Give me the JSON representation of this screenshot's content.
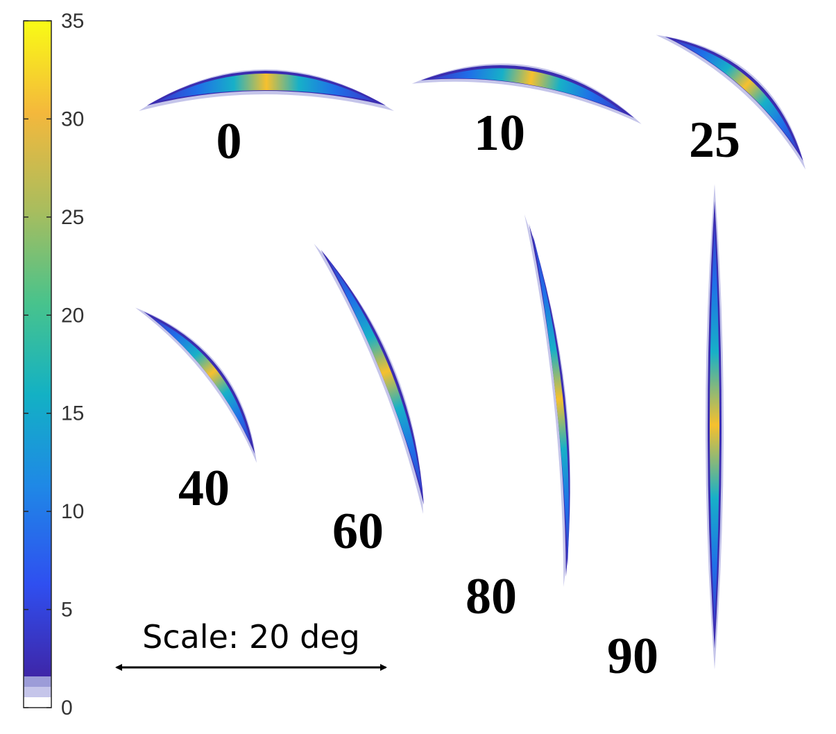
{
  "colorbar": {
    "ticks": [
      "0",
      "5",
      "10",
      "15",
      "20",
      "25",
      "30",
      "35"
    ],
    "range": [
      0,
      35
    ],
    "colormap": [
      "#3e26a8",
      "#2f4ff0",
      "#1f88e6",
      "#13b1c4",
      "#48c38c",
      "#a8bd5e",
      "#f4b83c",
      "#f9fb15"
    ],
    "low_bands": [
      "#ffffff",
      "#c5c5ea",
      "#9c9cd8"
    ]
  },
  "arcs": [
    {
      "label": "0",
      "color_max": "#f8c42c"
    },
    {
      "label": "10",
      "color_max": "#f8c42c"
    },
    {
      "label": "25",
      "color_max": "#f8d020"
    },
    {
      "label": "40",
      "color_max": "#f4c030"
    },
    {
      "label": "60",
      "color_max": "#f9e020"
    },
    {
      "label": "80",
      "color_max": "#f4c030"
    },
    {
      "label": "90",
      "color_max": "#f8c030"
    }
  ],
  "scale_bar": {
    "label": "Scale: 20 deg"
  }
}
